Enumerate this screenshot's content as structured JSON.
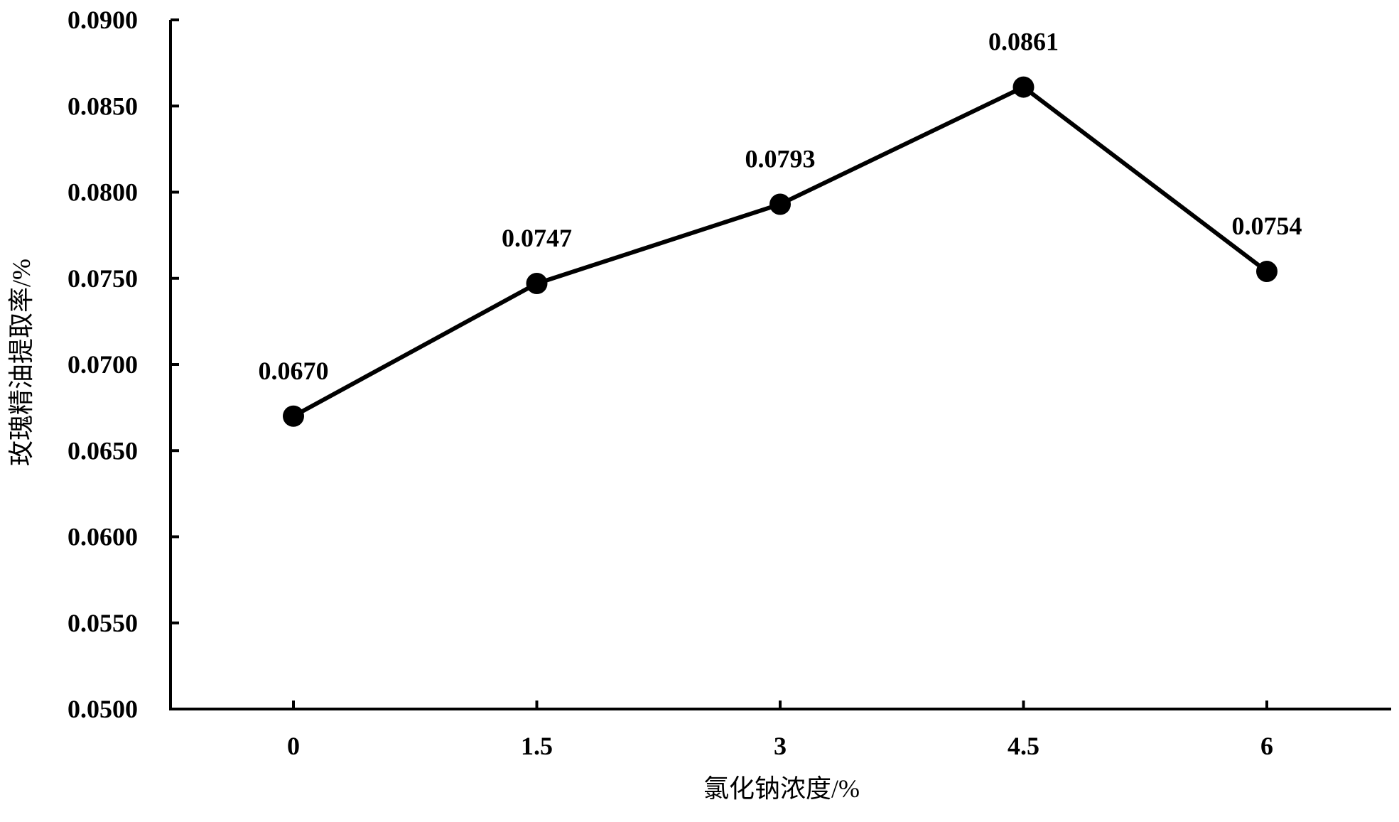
{
  "chart_data": {
    "type": "line",
    "title": "",
    "xlabel": "氯化钠浓度/%",
    "ylabel": "玫瑰精油提取率/%",
    "categories": [
      "0",
      "1.5",
      "3",
      "4.5",
      "6"
    ],
    "series": [
      {
        "values": [
          0.067,
          0.0747,
          0.0793,
          0.0861,
          0.0754
        ]
      }
    ],
    "data_labels": [
      "0.0670",
      "0.0747",
      "0.0793",
      "0.0861",
      "0.0754"
    ],
    "ylim": [
      0.05,
      0.09
    ],
    "y_ticks": [
      0.05,
      0.055,
      0.06,
      0.065,
      0.07,
      0.075,
      0.08,
      0.085,
      0.09
    ],
    "y_tick_labels": [
      "0.0500",
      "0.0550",
      "0.0600",
      "0.0650",
      "0.0700",
      "0.0750",
      "0.0800",
      "0.0850",
      "0.0900"
    ],
    "grid": false,
    "legend": "none",
    "colors": {
      "line": "#000000",
      "marker": "#000000",
      "axis": "#000000"
    }
  }
}
